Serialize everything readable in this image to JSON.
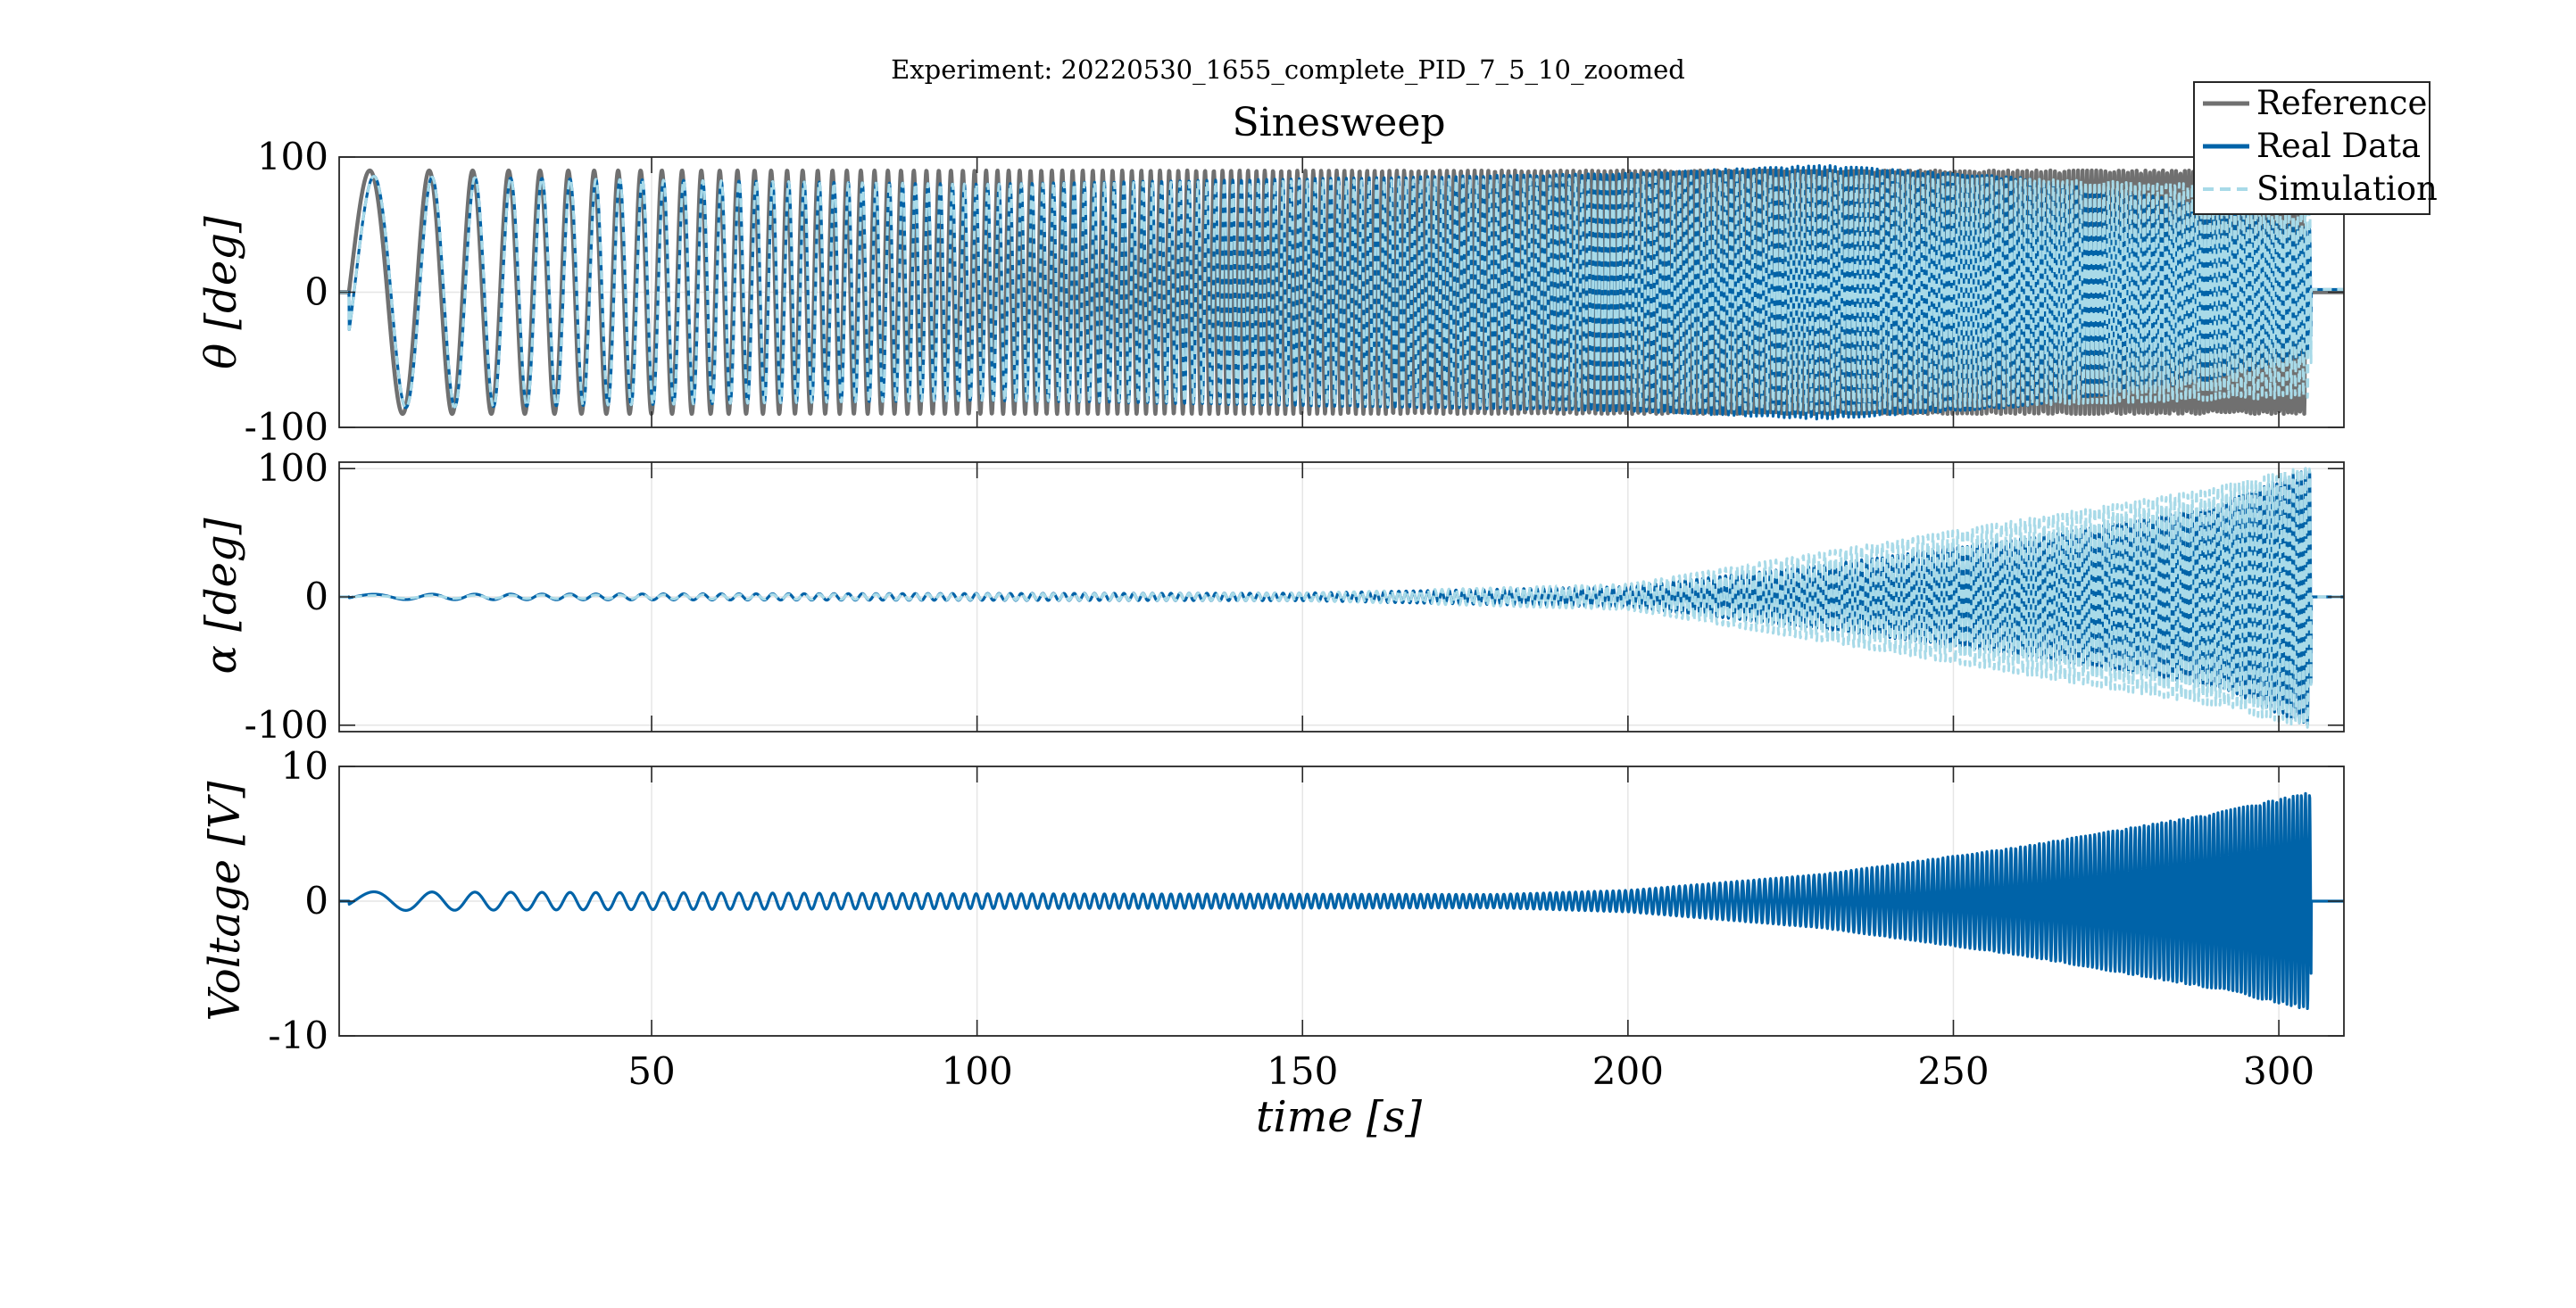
{
  "figure": {
    "suptitle": "Experiment: 20220530_1655_complete_PID_7_5_10_zoomed"
  },
  "colors": {
    "reference": "#707070",
    "real_data": "#0063a8",
    "simulation": "#a8dae8",
    "axes": "#262626",
    "grid": "#e6e6e6"
  },
  "chart_data": [
    {
      "type": "line",
      "title": "Sinesweep",
      "xlabel": "",
      "ylabel": "θ [deg]",
      "xlim": [
        2,
        310
      ],
      "ylim": [
        -100,
        100
      ],
      "yticks": [
        -100,
        0,
        100
      ],
      "xticks": [
        50,
        100,
        150,
        200,
        250,
        300
      ],
      "show_xtick_labels": false,
      "grid": true,
      "legend": {
        "location": "top-right",
        "entries": [
          "Reference",
          "Real Data",
          "Simulation"
        ]
      },
      "series": [
        {
          "name": "Reference",
          "signal": "chirp",
          "start_time": 3.5,
          "end_time": 304,
          "amplitude": 90,
          "freq_start_hz": 0.07,
          "freq_end_hz": 1.6
        },
        {
          "name": "Real Data",
          "signal": "chirp-response",
          "start_time": 3.5,
          "end_time": 305,
          "amplitude_points": [
            [
              3,
              86
            ],
            [
              100,
              80
            ],
            [
              200,
              88
            ],
            [
              230,
              94
            ],
            [
              260,
              85
            ],
            [
              290,
              65
            ],
            [
              304,
              48
            ]
          ],
          "freq_start_hz": 0.07,
          "freq_end_hz": 1.6,
          "tail_value": 2
        },
        {
          "name": "Simulation",
          "signal": "chirp-response",
          "start_time": 3.5,
          "end_time": 305,
          "amplitude_points": [
            [
              3,
              86
            ],
            [
              100,
              80
            ],
            [
              200,
              85
            ],
            [
              230,
              88
            ],
            [
              260,
              84
            ],
            [
              290,
              80
            ],
            [
              304,
              78
            ]
          ],
          "freq_start_hz": 0.07,
          "freq_end_hz": 1.6,
          "tail_value": 2
        }
      ]
    },
    {
      "type": "line",
      "title": "",
      "xlabel": "",
      "ylabel": "α [deg]",
      "xlim": [
        2,
        310
      ],
      "ylim": [
        -105,
        105
      ],
      "yticks": [
        -100,
        0,
        100
      ],
      "xticks": [
        50,
        100,
        150,
        200,
        250,
        300
      ],
      "show_xtick_labels": false,
      "grid": true,
      "series": [
        {
          "name": "Real Data",
          "signal": "chirp-response",
          "start_time": 3.5,
          "end_time": 305,
          "amplitude_points": [
            [
              3,
              2
            ],
            [
              150,
              3
            ],
            [
              200,
              8
            ],
            [
              230,
              25
            ],
            [
              260,
              45
            ],
            [
              290,
              70
            ],
            [
              304,
              100
            ]
          ],
          "freq_start_hz": 0.07,
          "freq_end_hz": 1.6,
          "tail_value": 0
        },
        {
          "name": "Simulation",
          "signal": "chirp-response",
          "start_time": 3.5,
          "end_time": 305,
          "amplitude_points": [
            [
              3,
              1
            ],
            [
              150,
              3
            ],
            [
              200,
              10
            ],
            [
              230,
              35
            ],
            [
              260,
              60
            ],
            [
              290,
              85
            ],
            [
              304,
              102
            ]
          ],
          "freq_start_hz": 0.07,
          "freq_end_hz": 1.6,
          "tail_value": 0
        }
      ]
    },
    {
      "type": "line",
      "title": "",
      "xlabel": "time [s]",
      "ylabel": "Voltage [V]",
      "xlim": [
        2,
        310
      ],
      "ylim": [
        -10,
        10
      ],
      "yticks": [
        -10,
        0,
        10
      ],
      "xticks": [
        50,
        100,
        150,
        200,
        250,
        300
      ],
      "show_xtick_labels": true,
      "grid": true,
      "series": [
        {
          "name": "Real Data",
          "signal": "chirp-response",
          "start_time": 3.5,
          "end_time": 305,
          "amplitude_points": [
            [
              3,
              0.7
            ],
            [
              100,
              0.55
            ],
            [
              180,
              0.5
            ],
            [
              200,
              0.8
            ],
            [
              230,
              2.0
            ],
            [
              260,
              4.0
            ],
            [
              290,
              6.5
            ],
            [
              304,
              8.0
            ]
          ],
          "freq_start_hz": 0.07,
          "freq_end_hz": 1.6,
          "tail_value": 0
        }
      ]
    }
  ]
}
